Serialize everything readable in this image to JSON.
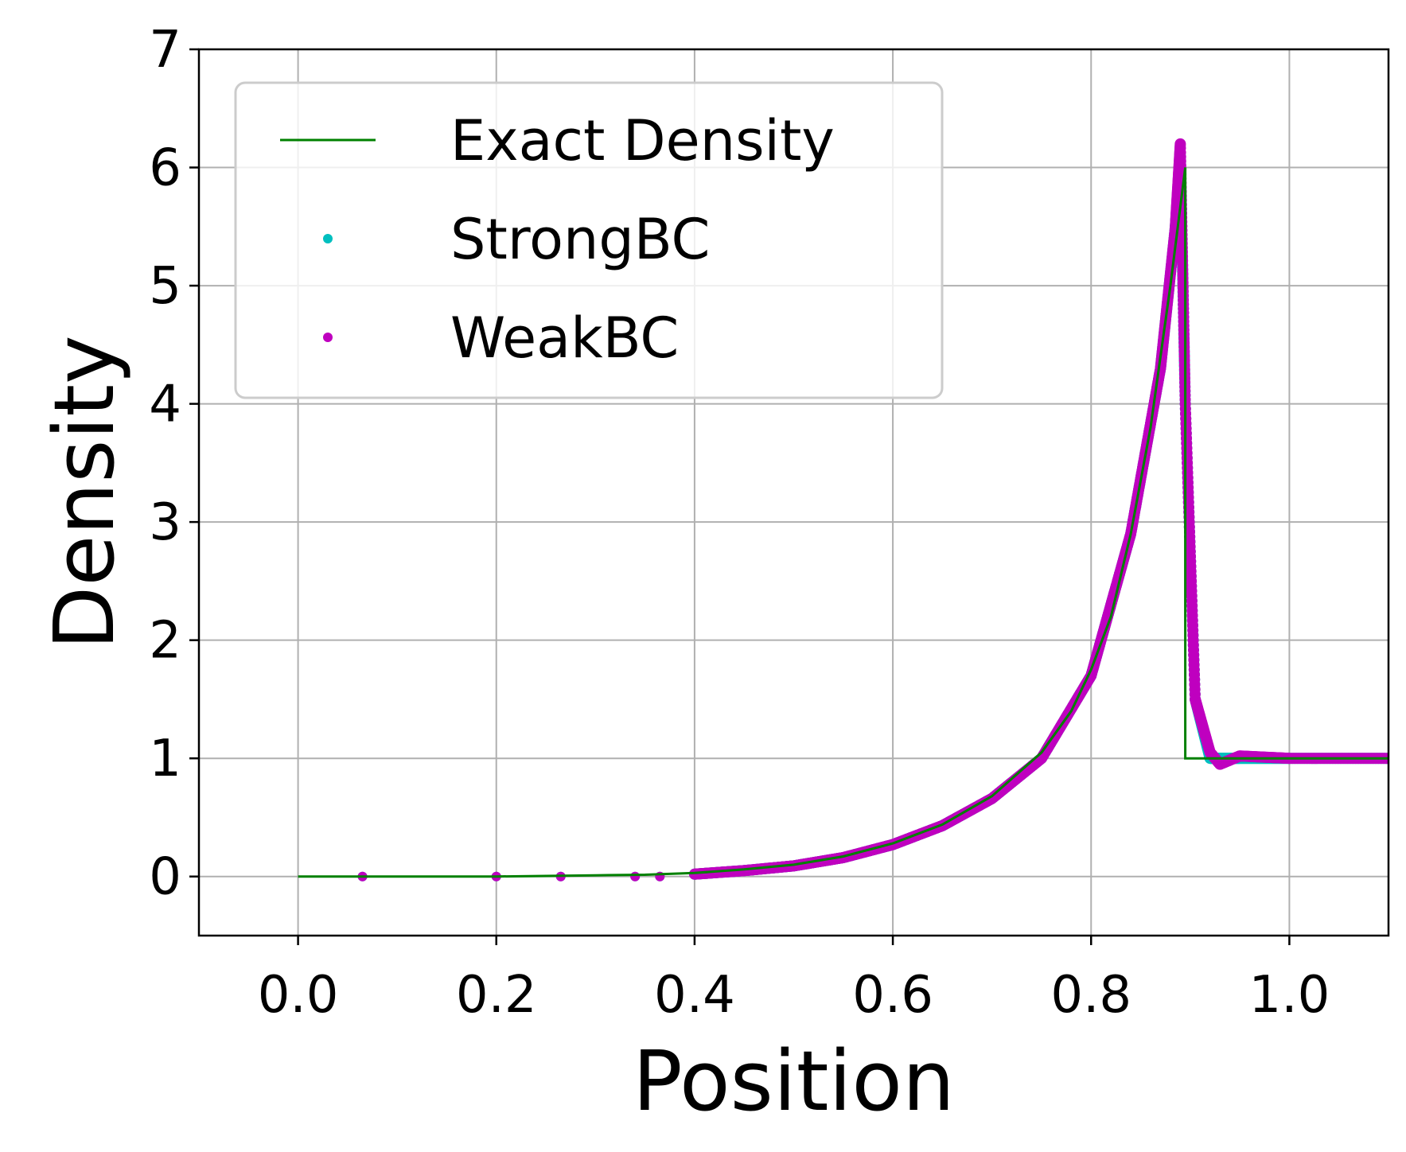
{
  "chart_data": {
    "type": "line",
    "xlabel": "Position",
    "ylabel": "Density",
    "xlim": [
      -0.1,
      1.1
    ],
    "ylim": [
      -0.5,
      7
    ],
    "xticks": [
      "0.0",
      "0.2",
      "0.4",
      "0.6",
      "0.8",
      "1.0"
    ],
    "yticks": [
      "0",
      "1",
      "2",
      "3",
      "4",
      "5",
      "6",
      "7"
    ],
    "grid": true,
    "legend_position": "upper-left",
    "series": [
      {
        "name": "Exact Density",
        "kind": "line",
        "color": "#008000",
        "x": [
          0.0,
          0.1,
          0.2,
          0.3,
          0.35,
          0.4,
          0.45,
          0.5,
          0.55,
          0.6,
          0.65,
          0.7,
          0.75,
          0.78,
          0.8,
          0.82,
          0.84,
          0.86,
          0.88,
          0.895,
          0.895,
          0.9,
          1.1
        ],
        "y": [
          0.0,
          0.0,
          0.0,
          0.01,
          0.015,
          0.03,
          0.06,
          0.1,
          0.17,
          0.28,
          0.44,
          0.68,
          1.05,
          1.4,
          1.75,
          2.2,
          2.9,
          3.8,
          5.0,
          6.0,
          1.0,
          1.0,
          1.0
        ]
      },
      {
        "name": "StrongBC",
        "kind": "scatter",
        "color": "#00bfbf",
        "x": [
          0.065,
          0.2,
          0.265,
          0.34,
          0.365,
          0.4,
          0.45,
          0.5,
          0.55,
          0.6,
          0.65,
          0.7,
          0.75,
          0.8,
          0.84,
          0.87,
          0.885,
          0.89,
          0.895,
          0.905,
          0.92,
          0.95,
          1.0,
          1.1
        ],
        "y": [
          0.0,
          0.0,
          0.0,
          0.0,
          0.0,
          0.02,
          0.05,
          0.09,
          0.16,
          0.27,
          0.43,
          0.66,
          1.0,
          1.7,
          2.9,
          4.3,
          5.5,
          6.1,
          4.0,
          1.5,
          1.0,
          1.0,
          1.0,
          1.0
        ]
      },
      {
        "name": "WeakBC",
        "kind": "scatter",
        "color": "#bf00bf",
        "x": [
          0.065,
          0.2,
          0.265,
          0.34,
          0.365,
          0.4,
          0.45,
          0.5,
          0.55,
          0.6,
          0.65,
          0.7,
          0.75,
          0.8,
          0.84,
          0.87,
          0.885,
          0.89,
          0.895,
          0.905,
          0.92,
          0.93,
          0.95,
          1.0,
          1.1
        ],
        "y": [
          0.0,
          0.0,
          0.0,
          0.0,
          0.0,
          0.02,
          0.05,
          0.09,
          0.16,
          0.27,
          0.43,
          0.66,
          1.0,
          1.7,
          2.9,
          4.3,
          5.5,
          6.2,
          4.0,
          1.5,
          1.05,
          0.95,
          1.02,
          1.0,
          1.0
        ]
      }
    ]
  }
}
